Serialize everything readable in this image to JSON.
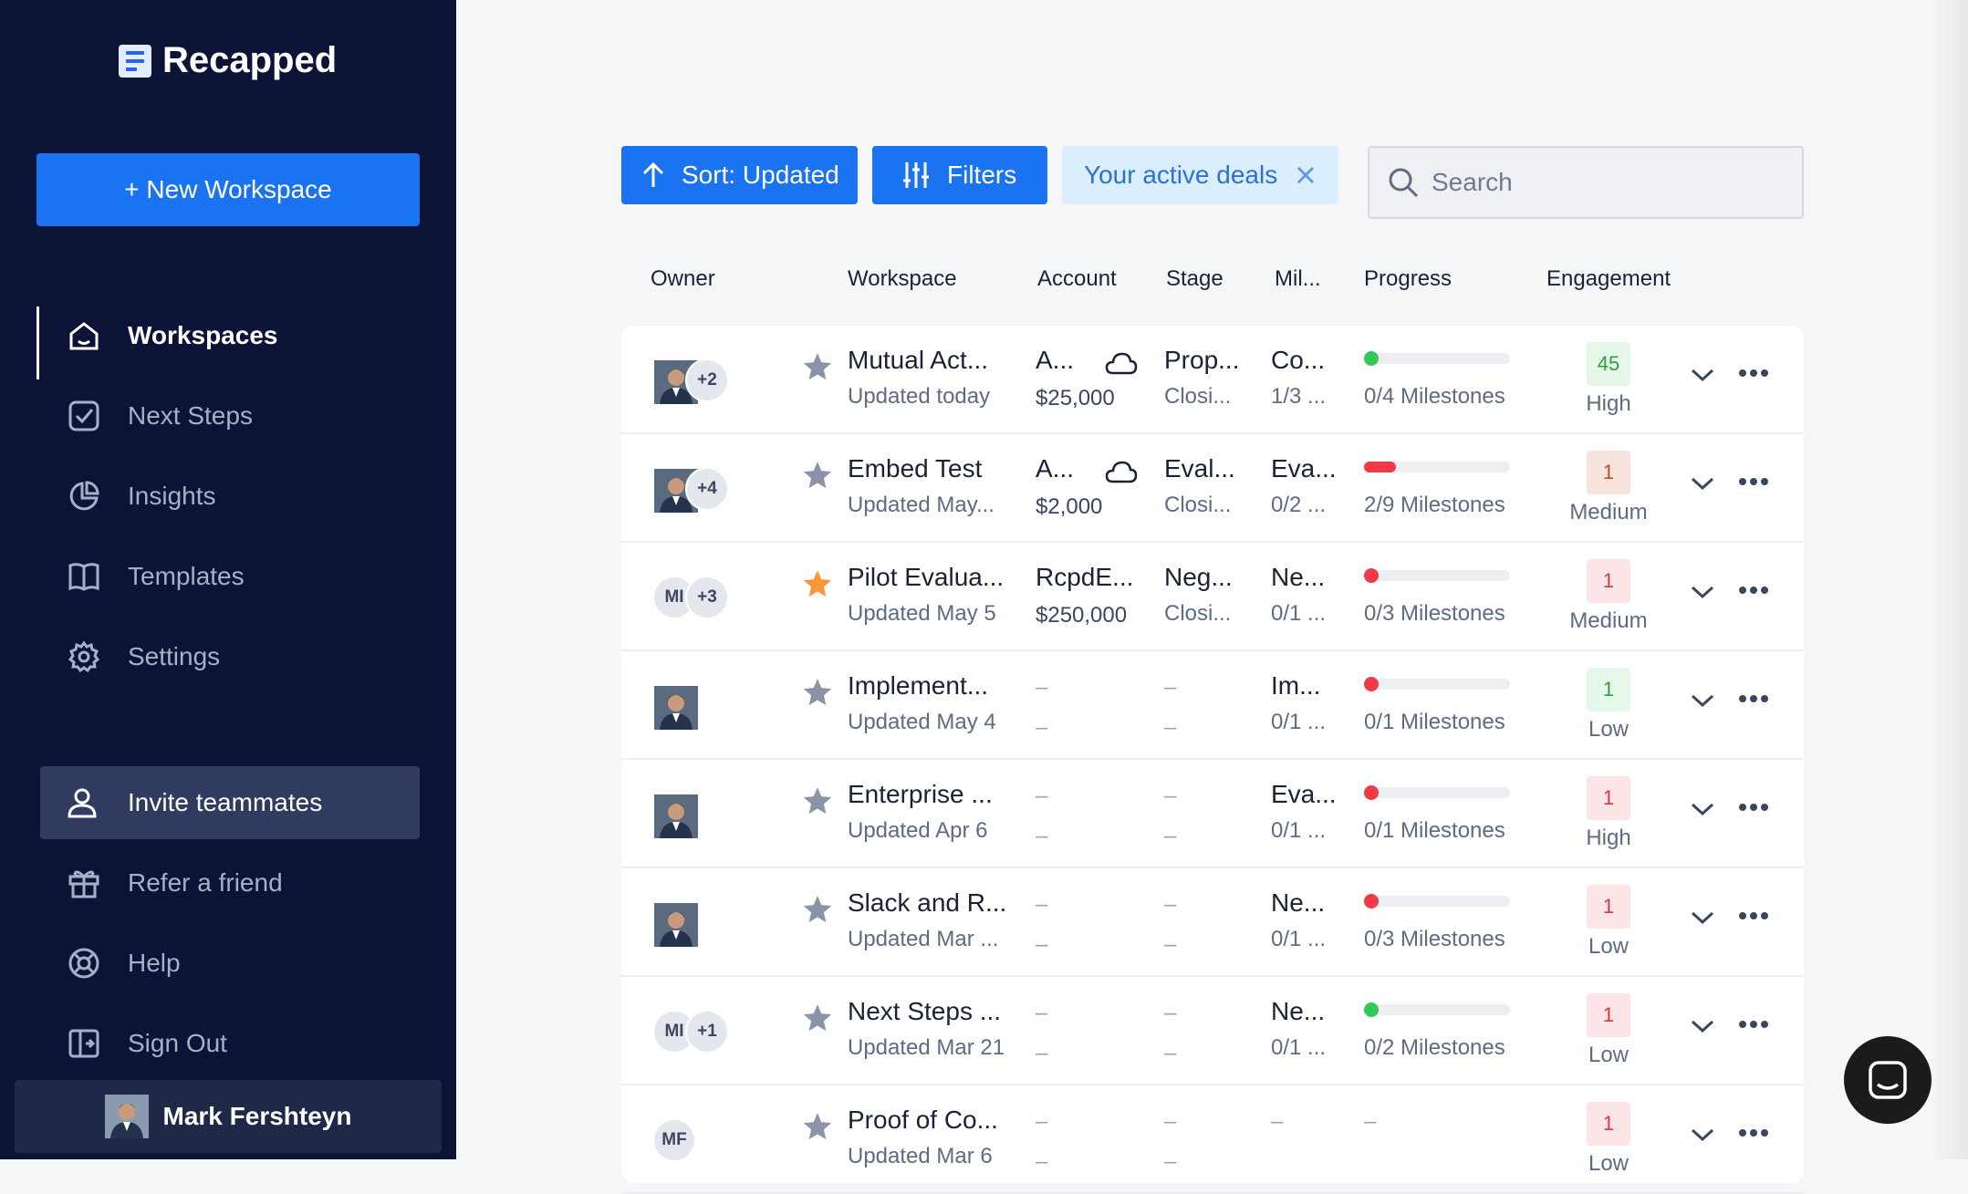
{
  "sidebar": {
    "brand": "Recapped",
    "new_workspace": "+ New Workspace",
    "nav": [
      {
        "label": "Workspaces",
        "icon": "home-icon"
      },
      {
        "label": "Next Steps",
        "icon": "check-square-icon"
      },
      {
        "label": "Insights",
        "icon": "pie-chart-icon"
      },
      {
        "label": "Templates",
        "icon": "book-icon"
      },
      {
        "label": "Settings",
        "icon": "gear-icon"
      }
    ],
    "nav_secondary": [
      {
        "label": "Invite teammates",
        "icon": "user-icon"
      },
      {
        "label": "Refer a friend",
        "icon": "gift-icon"
      },
      {
        "label": "Help",
        "icon": "lifebuoy-icon"
      },
      {
        "label": "Sign Out",
        "icon": "sign-out-icon"
      }
    ],
    "user_name": "Mark Fershteyn"
  },
  "toolbar": {
    "sort_label": "Sort: Updated",
    "filters_label": "Filters",
    "active_chip": "Your active deals",
    "search_placeholder": "Search"
  },
  "columns": [
    "Owner",
    "Workspace",
    "Account",
    "Stage",
    "Mil...",
    "Progress",
    "Engagement"
  ],
  "rows": [
    {
      "owner_more": "+2",
      "starred": false,
      "workspace": "Mutual Act...",
      "updated": "Updated today",
      "account": "A...",
      "amount": "$25,000",
      "cloud": true,
      "stage": "Prop...",
      "stage_sub": "Closi...",
      "milestone": "Co...",
      "milestone_sub": "1/3 ...",
      "progress_text": "0/4 Milestones",
      "progress": 0.0,
      "progress_color": "#34c759",
      "score": "45",
      "score_level": "high",
      "engagement": "High"
    },
    {
      "owner_more": "+4",
      "starred": false,
      "workspace": "Embed Test",
      "updated": "Updated May...",
      "account": "A...",
      "amount": "$2,000",
      "cloud": true,
      "stage": "Eval...",
      "stage_sub": "Closi...",
      "milestone": "Eva...",
      "milestone_sub": "0/2 ...",
      "progress_text": "2/9 Milestones",
      "progress": 0.22,
      "progress_color": "#ef3b48",
      "score": "1",
      "score_level": "med",
      "engagement": "Medium"
    },
    {
      "owner_initials": "MI",
      "owner_more": "+3",
      "starred": true,
      "workspace": "Pilot Evalua...",
      "updated": "Updated May 5",
      "account": "RcpdE...",
      "amount": "$250,000",
      "cloud": false,
      "stage": "Neg...",
      "stage_sub": "Closi...",
      "milestone": "Ne...",
      "milestone_sub": "0/1 ...",
      "progress_text": "0/3 Milestones",
      "progress": 0.0,
      "progress_color": "#ef3b48",
      "score": "1",
      "score_level": "low",
      "engagement": "Medium"
    },
    {
      "owner_more": "",
      "starred": false,
      "workspace": "Implement...",
      "updated": "Updated May 4",
      "account": "–",
      "amount": "–",
      "cloud": false,
      "stage": "–",
      "stage_sub": "–",
      "milestone": "Im...",
      "milestone_sub": "0/1 ...",
      "progress_text": "0/1 Milestones",
      "progress": 0.0,
      "progress_color": "#ef3b48",
      "score": "1",
      "score_level": "green",
      "engagement": "Low"
    },
    {
      "owner_more": "",
      "starred": false,
      "workspace": "Enterprise ...",
      "updated": "Updated Apr 6",
      "account": "–",
      "amount": "–",
      "cloud": false,
      "stage": "–",
      "stage_sub": "–",
      "milestone": "Eva...",
      "milestone_sub": "0/1 ...",
      "progress_text": "0/1 Milestones",
      "progress": 0.0,
      "progress_color": "#ef3b48",
      "score": "1",
      "score_level": "low",
      "engagement": "High"
    },
    {
      "owner_more": "",
      "starred": false,
      "workspace": "Slack and R...",
      "updated": "Updated Mar ...",
      "account": "–",
      "amount": "–",
      "cloud": false,
      "stage": "–",
      "stage_sub": "–",
      "milestone": "Ne...",
      "milestone_sub": "0/1 ...",
      "progress_text": "0/3 Milestones",
      "progress": 0.0,
      "progress_color": "#ef3b48",
      "score": "1",
      "score_level": "low",
      "engagement": "Low"
    },
    {
      "owner_initials": "MI",
      "owner_more": "+1",
      "starred": false,
      "workspace": "Next Steps ...",
      "updated": "Updated Mar 21",
      "account": "–",
      "amount": "–",
      "cloud": false,
      "stage": "–",
      "stage_sub": "–",
      "milestone": "Ne...",
      "milestone_sub": "0/1 ...",
      "progress_text": "0/2 Milestones",
      "progress": 0.0,
      "progress_color": "#34c759",
      "score": "1",
      "score_level": "low",
      "engagement": "Low"
    },
    {
      "owner_initials": "MF",
      "owner_more": "",
      "starred": false,
      "workspace": "Proof of Co...",
      "updated": "Updated Mar 6",
      "account": "–",
      "amount": "–",
      "cloud": false,
      "stage": "–",
      "stage_sub": "–",
      "milestone": "–",
      "milestone_sub": "",
      "progress_text": "–",
      "progress": null,
      "progress_color": "",
      "score": "1",
      "score_level": "low",
      "engagement": "Low"
    }
  ],
  "colors": {
    "accent": "#1a73f0",
    "sidebar_bg": "#0b1437",
    "chip_bg": "#dbeefe",
    "star_orange": "#f9963b",
    "star_gray": "#8a93a8"
  }
}
